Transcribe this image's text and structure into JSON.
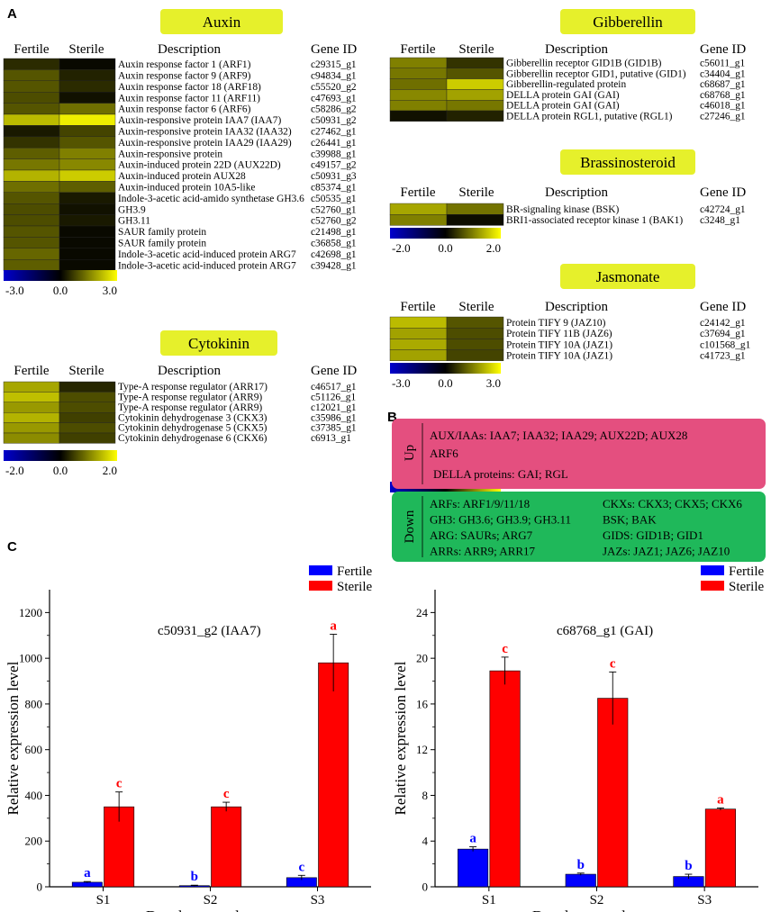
{
  "figure": {
    "panel_labels": {
      "a": "A",
      "b": "B",
      "c": "C"
    },
    "heat_cols": {
      "fertile": "Fertile",
      "sterile": "Sterile",
      "description": "Description",
      "gene_id": "Gene ID"
    }
  },
  "colors": {
    "low": "#0000cc",
    "mid": "#000000",
    "high": "#ffff00",
    "title_bg": "#e6f02b",
    "up_bg": "#e44f7f",
    "down_bg": "#1fb85a",
    "fertile_bar": "#0000ff",
    "sterile_bar": "#ff0000"
  },
  "heatmaps": [
    {
      "key": "auxin",
      "title": "Auxin",
      "scale_min": "-3.0",
      "scale_mid": "0.0",
      "scale_max": "3.0",
      "range": 3,
      "rows": [
        {
          "desc": "Auxin response factor 1 (ARF1)",
          "id": "c29315_g1",
          "fertile": 0.5,
          "sterile": 0.1
        },
        {
          "desc": "Auxin response factor 9 (ARF9)",
          "id": "c94834_g1",
          "fertile": 1.0,
          "sterile": 0.4
        },
        {
          "desc": "Auxin response factor 18 (ARF18)",
          "id": "c55520_g2",
          "fertile": 1.0,
          "sterile": 0.5
        },
        {
          "desc": "Auxin response factor 11 (ARF11)",
          "id": "c47693_g1",
          "fertile": 0.9,
          "sterile": 0.2
        },
        {
          "desc": "Auxin response factor 6 (ARF6)",
          "id": "c58286_g2",
          "fertile": 1.0,
          "sterile": 1.3
        },
        {
          "desc": "Auxin-responsive protein IAA7 (IAA7)",
          "id": "c50931_g2",
          "fertile": 2.2,
          "sterile": 2.8
        },
        {
          "desc": "Auxin-responsive protein IAA32 (IAA32)",
          "id": "c27462_g1",
          "fertile": 0.3,
          "sterile": 0.8
        },
        {
          "desc": "Auxin-responsive protein IAA29 (IAA29)",
          "id": "c26441_g1",
          "fertile": 0.6,
          "sterile": 1.0
        },
        {
          "desc": "Auxin-responsive protein",
          "id": "c39988_g1",
          "fertile": 1.1,
          "sterile": 1.5
        },
        {
          "desc": "Auxin-induced protein 22D (AUX22D)",
          "id": "c49157_g2",
          "fertile": 1.4,
          "sterile": 1.6
        },
        {
          "desc": "Auxin-induced protein AUX28",
          "id": "c50931_g3",
          "fertile": 2.1,
          "sterile": 2.4
        },
        {
          "desc": "Auxin-induced protein 10A5-like",
          "id": "c85374_g1",
          "fertile": 1.3,
          "sterile": 1.1
        },
        {
          "desc": "Indole-3-acetic acid-amido synthetase GH3.6",
          "id": "c50535_g1",
          "fertile": 1.0,
          "sterile": 0.3
        },
        {
          "desc": "GH3.9",
          "id": "c52760_g1",
          "fertile": 0.9,
          "sterile": 0.2
        },
        {
          "desc": "GH3.11",
          "id": "c52760_g2",
          "fertile": 0.9,
          "sterile": 0.3
        },
        {
          "desc": "SAUR family protein",
          "id": "c21498_g1",
          "fertile": 1.0,
          "sterile": 0.1
        },
        {
          "desc": "SAUR family protein",
          "id": "c36858_g1",
          "fertile": 1.0,
          "sterile": 0.1
        },
        {
          "desc": "Indole-3-acetic acid-induced protein ARG7",
          "id": "c42698_g1",
          "fertile": 1.2,
          "sterile": 0.1
        },
        {
          "desc": "Indole-3-acetic acid-induced protein ARG7",
          "id": "c39428_g1",
          "fertile": 1.1,
          "sterile": 0.1
        }
      ]
    },
    {
      "key": "cytokinin",
      "title": "Cytokinin",
      "scale_min": "-2.0",
      "scale_mid": "0.0",
      "scale_max": "2.0",
      "range": 2,
      "rows": [
        {
          "desc": "Type-A response regulator (ARR17)",
          "id": "c46517_g1",
          "fertile": 1.3,
          "sterile": 0.3
        },
        {
          "desc": "Type-A response regulator (ARR9)",
          "id": "c51126_g1",
          "fertile": 1.5,
          "sterile": 0.6
        },
        {
          "desc": "Type-A response regulator (ARR9)",
          "id": "c12021_g1",
          "fertile": 1.2,
          "sterile": 0.6
        },
        {
          "desc": "Cytokinin dehydrogenase 3 (CKX3)",
          "id": "c35986_g1",
          "fertile": 1.4,
          "sterile": 0.5
        },
        {
          "desc": "Cytokinin dehydrogenase 5 (CKX5)",
          "id": "c37385_g1",
          "fertile": 1.2,
          "sterile": 0.6
        },
        {
          "desc": "Cytokinin dehydrogenase 6 (CKX6)",
          "id": "c6913_g1",
          "fertile": 1.1,
          "sterile": 0.5
        }
      ]
    },
    {
      "key": "gibberellin",
      "title": "Gibberellin",
      "scale_min": "-3.0",
      "scale_mid": "0.0",
      "scale_max": "3.0",
      "range": 3,
      "rows": [
        {
          "desc": "Gibberellin receptor GID1B (GID1B)",
          "id": "c56011_g1",
          "fertile": 1.5,
          "sterile": 0.6
        },
        {
          "desc": "Gibberellin receptor GID1, putative (GID1)",
          "id": "c34404_g1",
          "fertile": 1.4,
          "sterile": 1.0
        },
        {
          "desc": "Gibberellin-regulated protein",
          "id": "c68687_g1",
          "fertile": 1.3,
          "sterile": 2.4
        },
        {
          "desc": "DELLA protein GAI (GAI)",
          "id": "c68768_g1",
          "fertile": 1.6,
          "sterile": 1.9
        },
        {
          "desc": "DELLA protein GAI (GAI)",
          "id": "c46018_g1",
          "fertile": 1.5,
          "sterile": 1.4
        },
        {
          "desc": "DELLA protein RGL1, putative (RGL1)",
          "id": "c27246_g1",
          "fertile": 0.2,
          "sterile": 0.4
        }
      ]
    },
    {
      "key": "brassinosteroid",
      "title": "Brassinosteroid",
      "scale_min": "-2.0",
      "scale_mid": "0.0",
      "scale_max": "2.0",
      "range": 2,
      "rows": [
        {
          "desc": "BR-signaling kinase (BSK)",
          "id": "c42724_g1",
          "fertile": 1.3,
          "sterile": 0.9
        },
        {
          "desc": "BRI1-associated receptor kinase 1 (BAK1)",
          "id": "c3248_g1",
          "fertile": 1.0,
          "sterile": 0.1
        }
      ]
    },
    {
      "key": "jasmonate",
      "title": "Jasmonate",
      "scale_min": "-3.0",
      "scale_mid": "0.0",
      "scale_max": "3.0",
      "range": 3,
      "rows": [
        {
          "desc": "Protein TIFY 9 (JAZ10)",
          "id": "c24142_g1",
          "fertile": 2.2,
          "sterile": 1.0
        },
        {
          "desc": "Protein TIFY 11B (JAZ6)",
          "id": "c37694_g1",
          "fertile": 1.9,
          "sterile": 0.9
        },
        {
          "desc": "Protein TIFY 10A (JAZ1)",
          "id": "c101568_g1",
          "fertile": 2.0,
          "sterile": 0.9
        },
        {
          "desc": "Protein TIFY 10A (JAZ1)",
          "id": "c41723_g1",
          "fertile": 1.9,
          "sterile": 0.8
        }
      ]
    }
  ],
  "summary": {
    "up_label": "Up",
    "up_lines": [
      "AUX/IAAs: IAA7; IAA32; IAA29; AUX22D; AUX28",
      "ARF6",
      "DELLA proteins: GAI; RGL"
    ],
    "down_label": "Down",
    "down_left": [
      "ARFs: ARF1/9/11/18",
      "GH3: GH3.6; GH3.9; GH3.11",
      "ARG: SAURs; ARG7",
      "ARRs: ARR9; ARR17"
    ],
    "down_right": [
      "CKXs: CKX3; CKX5; CKX6",
      "BSK; BAK",
      "GIDS: GID1B; GID1",
      "JAZs: JAZ1; JAZ6; JAZ10"
    ]
  },
  "chart_data": [
    {
      "type": "bar",
      "title": "c50931_g2 (IAA7)",
      "xlabel": "Developmental stage",
      "ylabel": "Relative expression level",
      "categories": [
        "S1",
        "S2",
        "S3"
      ],
      "ylim": [
        0,
        1300
      ],
      "yticks": [
        0,
        200,
        400,
        600,
        800,
        1000,
        1200
      ],
      "series": [
        {
          "name": "Fertile",
          "values": [
            20,
            5,
            40
          ],
          "errors": [
            3,
            2,
            10
          ],
          "letters": [
            "a",
            "b",
            "c"
          ]
        },
        {
          "name": "Sterile",
          "values": [
            350,
            350,
            980
          ],
          "errors": [
            65,
            20,
            125
          ],
          "letters": [
            "c",
            "c",
            "a"
          ]
        }
      ]
    },
    {
      "type": "bar",
      "title": "c68768_g1 (GAI)",
      "xlabel": "Developmental stage",
      "ylabel": "Relative expression level",
      "categories": [
        "S1",
        "S2",
        "S3"
      ],
      "ylim": [
        0,
        26
      ],
      "yticks": [
        0,
        4,
        8,
        12,
        16,
        20,
        24
      ],
      "series": [
        {
          "name": "Fertile",
          "values": [
            3.3,
            1.1,
            0.9
          ],
          "errors": [
            0.2,
            0.1,
            0.2
          ],
          "letters": [
            "a",
            "b",
            "b"
          ]
        },
        {
          "name": "Sterile",
          "values": [
            18.9,
            16.5,
            6.8
          ],
          "errors": [
            1.2,
            2.3,
            0.1
          ],
          "letters": [
            "c",
            "c",
            "a"
          ]
        }
      ]
    }
  ]
}
